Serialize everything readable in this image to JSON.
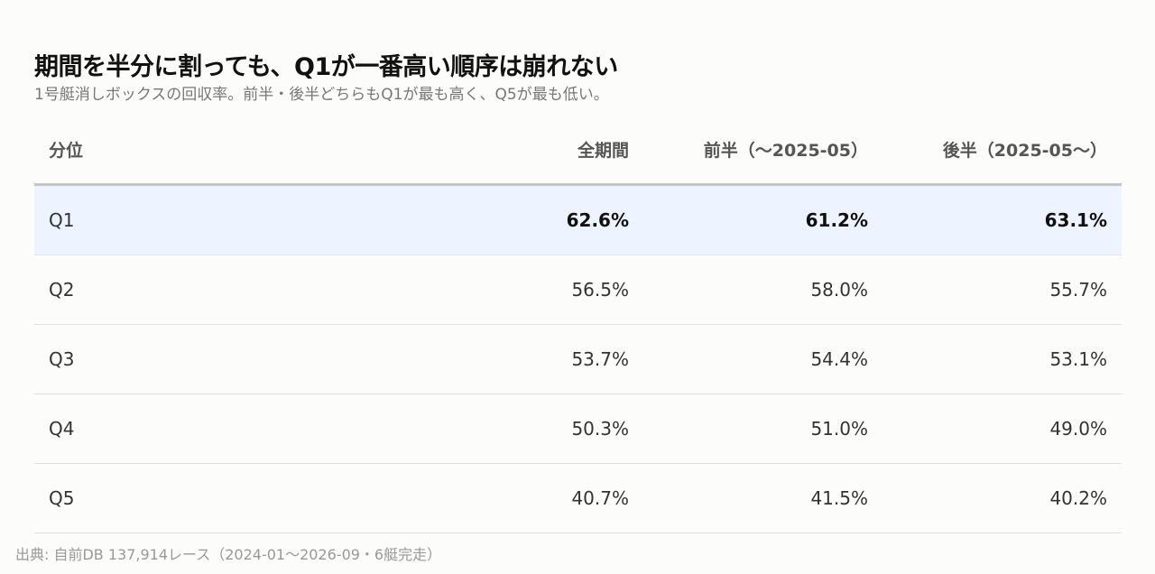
{
  "title": "期間を半分に割っても、Q1が一番高い順序は崩れない",
  "subtitle": "1号艇消しボックスの回収率。前半・後半どちらもQ1が最も高く、Q5が最も低い。",
  "footer": "出典: 自前DB 137,914レース（2024-01〜2026-09・6艇完走）",
  "chart_data": {
    "type": "table",
    "title": "期間を半分に割っても、Q1が一番高い順序は崩れない",
    "subtitle": "1号艇消しボックスの回収率。前半・後半どちらもQ1が最も高く、Q5が最も低い。",
    "columns": [
      "分位",
      "全期間",
      "前半（〜2025-05）",
      "後半（2025-05〜）"
    ],
    "rows": [
      {
        "label": "Q1",
        "values": [
          "62.6%",
          "61.2%",
          "63.1%"
        ],
        "highlight": true
      },
      {
        "label": "Q2",
        "values": [
          "56.5%",
          "58.0%",
          "55.7%"
        ],
        "highlight": false
      },
      {
        "label": "Q3",
        "values": [
          "53.7%",
          "54.4%",
          "53.1%"
        ],
        "highlight": false
      },
      {
        "label": "Q4",
        "values": [
          "50.3%",
          "51.0%",
          "49.0%"
        ],
        "highlight": false
      },
      {
        "label": "Q5",
        "values": [
          "40.7%",
          "41.5%",
          "40.2%"
        ],
        "highlight": false
      }
    ],
    "colors": {
      "highlight_row": "#edf3ff"
    }
  }
}
